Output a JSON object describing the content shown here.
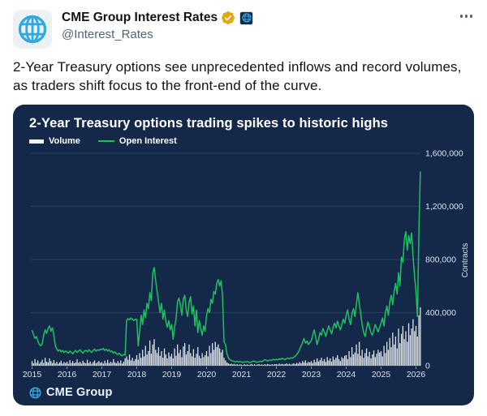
{
  "tweet": {
    "author_name": "CME Group Interest Rates",
    "handle": "@Interest_Rates",
    "badges": [
      "gold-verified-badge",
      "cme-affiliate-badge"
    ],
    "text": "2-Year Treasury options see unprecedented inflows and record volumes, as traders shift focus to the front-end of the curve."
  },
  "chart": {
    "title": "2-Year Treasury options trading spikes to historic highs",
    "legend": [
      {
        "label": "Volume",
        "color": "#f2f5f7"
      },
      {
        "label": "Open Interest",
        "color": "#20c05e"
      }
    ],
    "watermark": "CME Group",
    "colors": {
      "card_background": "#14294a",
      "gridline": "#27415f",
      "tick_text": "#d9e1ea",
      "open_interest_green": "#20c05e",
      "volume_white": "#f2f5f7",
      "cme_blue": "#2fa9e0",
      "gold_badge": "#e0a815"
    }
  },
  "chart_data": {
    "type": "line+bar",
    "title": "2-Year Treasury options trading spikes to historic highs",
    "ylabel": "Contracts",
    "xlabel": "",
    "grid": "horizontal",
    "legend_position": "top-left",
    "ylim": [
      0,
      1600000
    ],
    "yticks": [
      0,
      400000,
      800000,
      1200000,
      1600000
    ],
    "xticks": [
      2015,
      2016,
      2017,
      2018,
      2019,
      2020,
      2021,
      2022,
      2023,
      2024,
      2025,
      2026
    ],
    "x_start": 2015.0,
    "x_step_years": 0.0416667,
    "values_unit": "thousand contracts",
    "series": [
      {
        "name": "Volume",
        "type": "bar",
        "color": "#f2f5f7",
        "values_k": [
          35,
          18,
          50,
          22,
          40,
          15,
          28,
          45,
          20,
          60,
          30,
          25,
          55,
          35,
          20,
          42,
          18,
          30,
          15,
          25,
          38,
          16,
          28,
          20,
          30,
          15,
          42,
          20,
          35,
          18,
          25,
          48,
          22,
          30,
          16,
          38,
          24,
          18,
          45,
          20,
          32,
          15,
          28,
          40,
          18,
          26,
          35,
          22,
          28,
          16,
          38,
          20,
          45,
          18,
          30,
          22,
          50,
          25,
          18,
          35,
          20,
          40,
          16,
          30,
          55,
          70,
          45,
          85,
          40,
          60,
          35,
          50,
          80,
          45,
          95,
          60,
          120,
          70,
          150,
          85,
          110,
          190,
          90,
          160,
          200,
          120,
          95,
          140,
          75,
          110,
          60,
          130,
          85,
          55,
          100,
          70,
          90,
          55,
          130,
          75,
          160,
          95,
          120,
          65,
          145,
          170,
          85,
          110,
          160,
          95,
          70,
          125,
          60,
          90,
          140,
          75,
          55,
          95,
          65,
          80,
          110,
          70,
          150,
          95,
          170,
          120,
          180,
          140,
          160,
          130,
          100,
          120,
          60,
          40,
          25,
          18,
          12,
          15,
          10,
          14,
          8,
          12,
          7,
          10,
          8,
          5,
          12,
          7,
          10,
          6,
          9,
          13,
          7,
          11,
          5,
          9,
          12,
          7,
          10,
          6,
          11,
          8,
          13,
          9,
          7,
          11,
          8,
          12,
          12,
          8,
          16,
          10,
          14,
          9,
          12,
          18,
          10,
          15,
          8,
          14,
          18,
          12,
          22,
          15,
          28,
          18,
          35,
          25,
          40,
          20,
          30,
          25,
          35,
          20,
          45,
          28,
          55,
          32,
          42,
          60,
          35,
          50,
          28,
          65,
          40,
          55,
          30,
          70,
          45,
          60,
          80,
          50,
          35,
          65,
          55,
          75,
          80,
          50,
          110,
          65,
          140,
          85,
          100,
          160,
          90,
          180,
          75,
          120,
          60,
          95,
          130,
          70,
          105,
          55,
          85,
          115,
          65,
          90,
          120,
          100,
          110,
          70,
          150,
          95,
          180,
          120,
          210,
          140,
          250,
          160,
          220,
          130,
          280,
          170,
          240,
          300,
          200,
          260,
          180,
          320,
          230,
          280,
          350,
          260,
          300,
          220,
          380,
          440
        ]
      },
      {
        "name": "Open Interest",
        "type": "line",
        "color": "#20c05e",
        "values_k": [
          265,
          235,
          205,
          220,
          185,
          160,
          150,
          165,
          230,
          270,
          245,
          280,
          300,
          260,
          285,
          230,
          150,
          125,
          110,
          120,
          105,
          115,
          100,
          110,
          105,
          95,
          110,
          100,
          90,
          105,
          115,
          100,
          110,
          120,
          105,
          95,
          110,
          115,
          105,
          120,
          110,
          100,
          115,
          125,
          110,
          120,
          115,
          125,
          120,
          130,
          115,
          125,
          110,
          120,
          105,
          110,
          95,
          105,
          90,
          85,
          95,
          80,
          75,
          85,
          80,
          340,
          355,
          345,
          360,
          350,
          340,
          350,
          350,
          150,
          260,
          380,
          310,
          420,
          360,
          470,
          430,
          550,
          490,
          700,
          740,
          640,
          560,
          480,
          400,
          470,
          350,
          420,
          330,
          290,
          340,
          270,
          310,
          200,
          290,
          350,
          480,
          510,
          460,
          380,
          500,
          530,
          420,
          370,
          480,
          520,
          390,
          450,
          300,
          420,
          250,
          340,
          280,
          230,
          300,
          260,
          380,
          430,
          400,
          500,
          470,
          560,
          540,
          620,
          650,
          600,
          640,
          520,
          180,
          160,
          90,
          60,
          45,
          40,
          35,
          32,
          30,
          34,
          28,
          32,
          28,
          25,
          30,
          27,
          32,
          26,
          24,
          30,
          35,
          33,
          28,
          26,
          30,
          34,
          30,
          38,
          45,
          42,
          36,
          40,
          44,
          40,
          48,
          44,
          48,
          44,
          52,
          48,
          56,
          50,
          46,
          54,
          58,
          52,
          60,
          56,
          64,
          72,
          85,
          100,
          125,
          150,
          175,
          205,
          170,
          185,
          160,
          175,
          190,
          230,
          270,
          215,
          160,
          200,
          250,
          230,
          280,
          255,
          220,
          265,
          300,
          270,
          240,
          290,
          320,
          285,
          335,
          300,
          270,
          310,
          350,
          320,
          380,
          420,
          350,
          310,
          390,
          430,
          370,
          460,
          550,
          470,
          390,
          310,
          250,
          220,
          280,
          330,
          290,
          250,
          230,
          270,
          310,
          280,
          255,
          290,
          320,
          360,
          300,
          400,
          450,
          380,
          480,
          530,
          460,
          560,
          620,
          540,
          700,
          600,
          820,
          780,
          950,
          1010,
          870,
          980,
          920,
          1000,
          820,
          680,
          560,
          370,
          1000,
          1460
        ]
      }
    ]
  }
}
